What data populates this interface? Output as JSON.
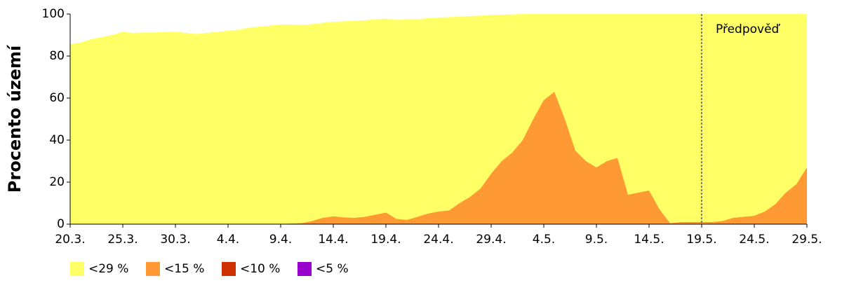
{
  "chart_data": {
    "type": "area",
    "y_label": "Procento území",
    "categories": [
      "20.3.",
      null,
      null,
      null,
      null,
      "25.3.",
      null,
      null,
      null,
      null,
      "30.3.",
      null,
      null,
      null,
      null,
      "4.4.",
      null,
      null,
      null,
      null,
      "9.4.",
      null,
      null,
      null,
      null,
      "14.4.",
      null,
      null,
      null,
      null,
      "19.4.",
      null,
      null,
      null,
      null,
      "24.4.",
      null,
      null,
      null,
      null,
      "29.4.",
      null,
      null,
      null,
      null,
      "4.5.",
      null,
      null,
      null,
      null,
      "9.5.",
      null,
      null,
      null,
      null,
      "14.5.",
      null,
      null,
      null,
      null,
      "19.5.",
      null,
      null,
      null,
      null,
      "24.5.",
      null,
      null,
      null,
      null,
      "29.5."
    ],
    "series": [
      {
        "name": "<29 %",
        "color": "#ffff66",
        "values": [
          85.5,
          86.5,
          88,
          89,
          90,
          91.5,
          91,
          91.2,
          91.2,
          91.5,
          91.5,
          91,
          90.5,
          91,
          91.5,
          92,
          92.5,
          93.5,
          94,
          94.5,
          95,
          95,
          94.8,
          95.2,
          95.8,
          96.3,
          96.5,
          96.8,
          97,
          97.5,
          97.8,
          97.2,
          97.5,
          97.5,
          98,
          98.3,
          98.5,
          98.8,
          99,
          99.2,
          99.5,
          99.7,
          99.8,
          100,
          100,
          100,
          100,
          100,
          100,
          100,
          100,
          100,
          100,
          100,
          100,
          100,
          100,
          100,
          100,
          100,
          100,
          100,
          100,
          100,
          100,
          100,
          100,
          100,
          100,
          100,
          100
        ]
      },
      {
        "name": "<15 %",
        "color": "#ff9933",
        "values": [
          0,
          0,
          0,
          0,
          0,
          0,
          0,
          0,
          0,
          0,
          0,
          0,
          0,
          0,
          0,
          0,
          0,
          0,
          0,
          0,
          0,
          0.3,
          0.5,
          1.5,
          3,
          3.7,
          3.2,
          3,
          3.5,
          4.5,
          5.5,
          2.5,
          2,
          3.5,
          5,
          6,
          6.5,
          10,
          13,
          17,
          24,
          30,
          34,
          40,
          50,
          59,
          63,
          50,
          35,
          30,
          27,
          30,
          31.5,
          14,
          15,
          16,
          7,
          0.5,
          1,
          1,
          1,
          1,
          1.5,
          3,
          3.5,
          4,
          6,
          9.5,
          15,
          19,
          27
        ]
      },
      {
        "name": "<10 %",
        "color": "#cc3300",
        "values": [
          0,
          0,
          0,
          0,
          0,
          0,
          0,
          0,
          0,
          0,
          0,
          0,
          0,
          0,
          0,
          0,
          0,
          0,
          0,
          0,
          0,
          0,
          0,
          0,
          0,
          0,
          0,
          0,
          0,
          0,
          0,
          0,
          0,
          0,
          0,
          0,
          0,
          0,
          0,
          0,
          0,
          0,
          0,
          0,
          0,
          0,
          0,
          0,
          0,
          0,
          0,
          0,
          0,
          0,
          0,
          0,
          0,
          0,
          0,
          0,
          0,
          0,
          0,
          0,
          0,
          0,
          0,
          0,
          0,
          0,
          0
        ]
      },
      {
        "name": "<5 %",
        "color": "#9900cc",
        "values": [
          0,
          0,
          0,
          0,
          0,
          0,
          0,
          0,
          0,
          0,
          0,
          0,
          0,
          0,
          0,
          0,
          0,
          0,
          0,
          0,
          0,
          0,
          0,
          0,
          0,
          0,
          0,
          0,
          0,
          0,
          0,
          0,
          0,
          0,
          0,
          0,
          0,
          0,
          0,
          0,
          0,
          0,
          0,
          0,
          0,
          0,
          0,
          0,
          0,
          0,
          0,
          0,
          0,
          0,
          0,
          0,
          0,
          0,
          0,
          0,
          0,
          0,
          0,
          0,
          0,
          0,
          0,
          0,
          0,
          0,
          0
        ]
      }
    ],
    "ylim": [
      0,
      100
    ],
    "yticks": [
      0,
      20,
      40,
      60,
      80,
      100
    ],
    "annotations": [
      {
        "text": "Předpověď",
        "x": "19.5."
      }
    ]
  }
}
